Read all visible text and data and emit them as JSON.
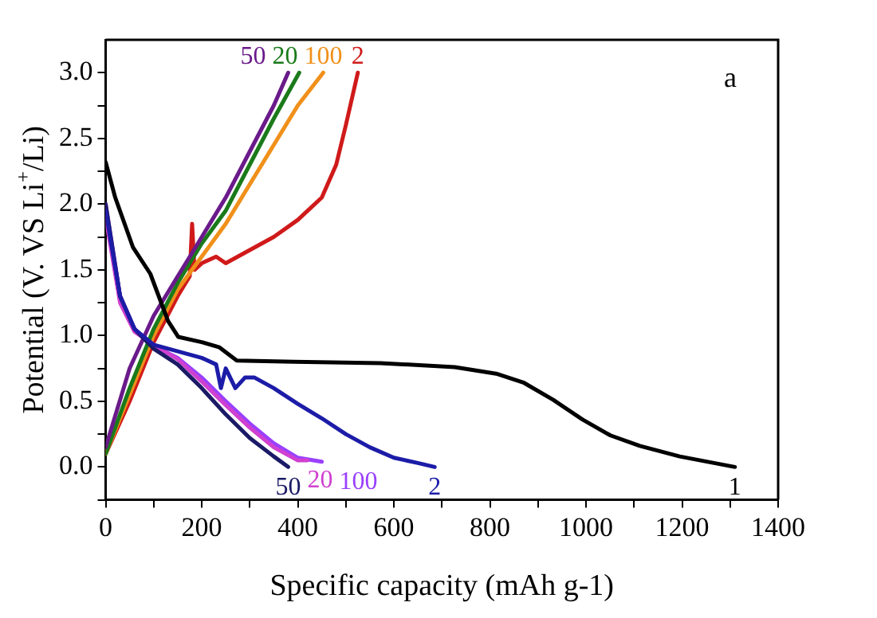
{
  "chart_data": {
    "type": "line",
    "xlabel": "Specific capacity (mAh g-1)",
    "ylabel": "Potential (V. VS Li$^{+}$/Li)",
    "xlim": [
      0,
      1400
    ],
    "ylim": [
      -0.25,
      3.25
    ],
    "xticks": [
      0,
      {
        "value": 100,
        "label": null
      },
      200,
      {
        "value": 300,
        "label": null
      },
      400,
      {
        "value": 500,
        "label": null
      },
      600,
      {
        "value": 700,
        "label": null
      },
      800,
      {
        "value": 900,
        "label": null
      },
      1000,
      {
        "value": 1100,
        "label": null
      },
      1200,
      {
        "value": 1300,
        "label": null
      },
      1400
    ],
    "yticks": [
      {
        "value": -0.25,
        "label": null
      },
      {
        "value": 0,
        "label": "0.0"
      },
      {
        "value": 0.25,
        "label": null
      },
      0.5,
      {
        "value": 0.75,
        "label": null
      },
      {
        "value": 1,
        "label": "1.0"
      },
      {
        "value": 1.25,
        "label": null
      },
      1.5,
      {
        "value": 1.75,
        "label": null
      },
      {
        "value": 2,
        "label": "2.0"
      },
      {
        "value": 2.25,
        "label": null
      },
      2.5,
      {
        "value": 2.75,
        "label": null
      },
      {
        "value": 3,
        "label": "3.0"
      }
    ],
    "grid": false,
    "legend": false,
    "marker": "none",
    "line_style": "solid",
    "series": [
      {
        "name": "1",
        "color": "#000000",
        "x": [
          0,
          20,
          57,
          93,
          130,
          151,
          200,
          237,
          273,
          392,
          572,
          727,
          813,
          871,
          932,
          993,
          1051,
          1112,
          1195,
          1310
        ],
        "values": [
          2.32,
          2.05,
          1.67,
          1.47,
          1.11,
          0.99,
          0.95,
          0.91,
          0.81,
          0.8,
          0.79,
          0.76,
          0.71,
          0.64,
          0.51,
          0.36,
          0.24,
          0.16,
          0.08,
          0.0
        ]
      },
      {
        "name": "2",
        "color": "#1c1ca8",
        "x": [
          0,
          30,
          60,
          100,
          150,
          200,
          230,
          240,
          250,
          270,
          290,
          310,
          350,
          400,
          450,
          500,
          550,
          600,
          650,
          685
        ],
        "values": [
          1.95,
          1.3,
          1.05,
          0.93,
          0.88,
          0.83,
          0.78,
          0.6,
          0.75,
          0.6,
          0.68,
          0.68,
          0.6,
          0.48,
          0.37,
          0.25,
          0.15,
          0.07,
          0.03,
          0.0
        ]
      },
      {
        "name": "50",
        "color": "#1a1a66",
        "x": [
          0,
          30,
          60,
          100,
          150,
          200,
          250,
          300,
          350,
          380
        ],
        "values": [
          2.0,
          1.3,
          1.05,
          0.9,
          0.78,
          0.6,
          0.4,
          0.22,
          0.08,
          0.0
        ]
      },
      {
        "name": "20",
        "color": "#d040d0",
        "x": [
          0,
          30,
          60,
          100,
          150,
          200,
          250,
          300,
          350,
          400,
          420
        ],
        "values": [
          1.9,
          1.25,
          1.03,
          0.93,
          0.82,
          0.65,
          0.47,
          0.3,
          0.15,
          0.05,
          0.05
        ]
      },
      {
        "name": "100",
        "color": "#9a40ff",
        "x": [
          0,
          30,
          60,
          100,
          150,
          200,
          250,
          300,
          350,
          400,
          450
        ],
        "values": [
          2.0,
          1.3,
          1.05,
          0.92,
          0.83,
          0.68,
          0.5,
          0.33,
          0.18,
          0.07,
          0.04
        ]
      },
      {
        "name": "50",
        "color": "#6a1a8a",
        "x": [
          0,
          50,
          100,
          150,
          187,
          250,
          300,
          350,
          380
        ],
        "values": [
          0.15,
          0.75,
          1.15,
          1.45,
          1.67,
          2.05,
          2.4,
          2.75,
          3.0
        ]
      },
      {
        "name": "20",
        "color": "#1a7a1a",
        "x": [
          0,
          50,
          100,
          150,
          200,
          250,
          300,
          350,
          403
        ],
        "values": [
          0.1,
          0.6,
          1.05,
          1.4,
          1.7,
          1.95,
          2.3,
          2.65,
          3.0
        ]
      },
      {
        "name": "100",
        "color": "#f0901a",
        "x": [
          0,
          50,
          100,
          150,
          200,
          250,
          300,
          350,
          400,
          453
        ],
        "values": [
          0.1,
          0.55,
          1.0,
          1.35,
          1.6,
          1.85,
          2.15,
          2.45,
          2.75,
          3.0
        ]
      },
      {
        "name": "2",
        "color": "#d01a1a",
        "x": [
          0,
          50,
          100,
          150,
          175,
          180,
          185,
          200,
          230,
          250,
          300,
          350,
          400,
          450,
          480,
          500,
          525
        ],
        "values": [
          0.1,
          0.5,
          0.95,
          1.3,
          1.45,
          1.85,
          1.5,
          1.55,
          1.6,
          1.55,
          1.65,
          1.75,
          1.88,
          2.05,
          2.3,
          2.6,
          3.0
        ]
      }
    ],
    "annotations": [
      "a"
    ]
  }
}
